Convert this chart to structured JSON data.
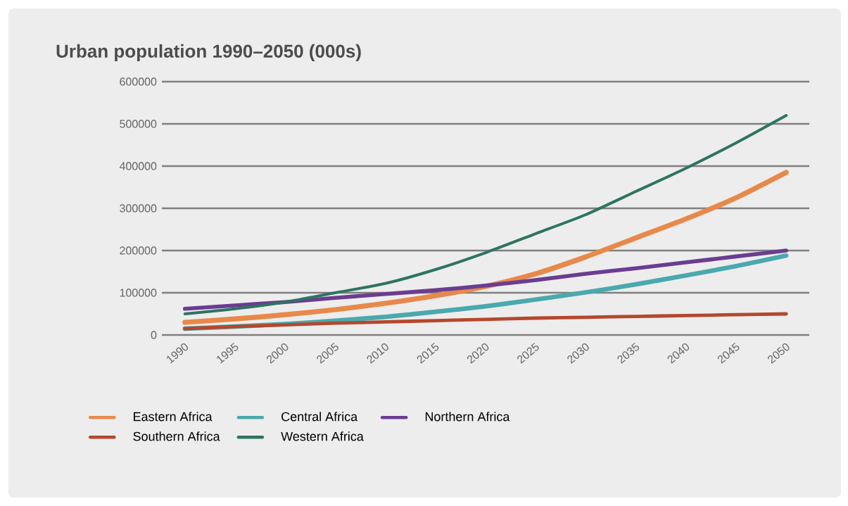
{
  "chart_data": {
    "type": "line",
    "title": "Urban population 1990–2050 (000s)",
    "categories": [
      "1990",
      "1995",
      "2000",
      "2005",
      "2010",
      "2015",
      "2020",
      "2025",
      "2030",
      "2035",
      "2040",
      "2045",
      "2050"
    ],
    "series": [
      {
        "name": "Eastern Africa",
        "color": "#e8894a",
        "values": [
          30000,
          38000,
          48000,
          60000,
          75000,
          93000,
          115000,
          145000,
          185000,
          230000,
          275000,
          325000,
          385000
        ]
      },
      {
        "name": "Central Africa",
        "color": "#4aa9ad",
        "values": [
          15000,
          20000,
          26000,
          34000,
          43000,
          55000,
          68000,
          84000,
          101000,
          120000,
          141000,
          163000,
          188000
        ]
      },
      {
        "name": "Northern Africa",
        "color": "#6a3d91",
        "values": [
          62000,
          70000,
          78000,
          88000,
          97000,
          106000,
          117000,
          130000,
          145000,
          158000,
          172000,
          186000,
          200000
        ]
      },
      {
        "name": "Southern Africa",
        "color": "#b5472d",
        "values": [
          15000,
          20000,
          24000,
          28000,
          31000,
          34000,
          37000,
          40000,
          42000,
          44000,
          46000,
          48000,
          50000
        ]
      },
      {
        "name": "Western Africa",
        "color": "#2e7462",
        "values": [
          50000,
          62000,
          78000,
          100000,
          122000,
          155000,
          195000,
          240000,
          285000,
          340000,
          395000,
          455000,
          520000
        ]
      }
    ],
    "ylim": [
      0,
      600000
    ],
    "yticks": [
      0,
      100000,
      200000,
      300000,
      400000,
      500000,
      600000
    ],
    "grid": "y",
    "legend": "bottom",
    "marker": "none",
    "line_style": "solid"
  }
}
